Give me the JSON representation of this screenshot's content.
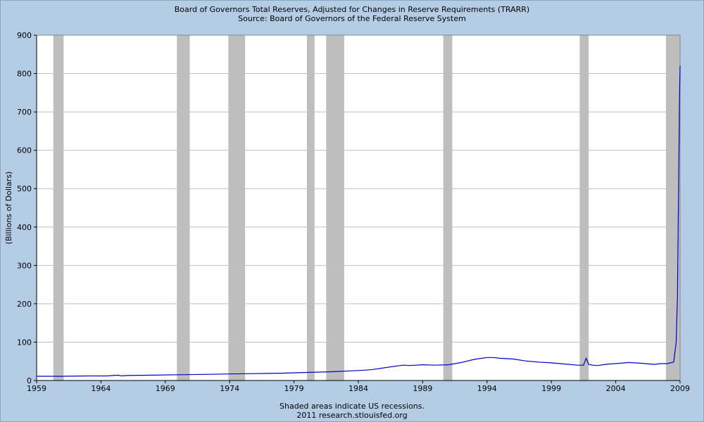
{
  "header": {
    "title": "Board of Governors Total Reserves, Adjusted for Changes in Reserve Requirements (TRARR)",
    "source": "Source: Board of Governors of the Federal Reserve System"
  },
  "footer": {
    "note": "Shaded areas indicate US recessions.",
    "credit": "2011 research.stlouisfed.org"
  },
  "colors": {
    "background": "#b4cce4",
    "plot": "#ffffff",
    "recession": "#bebebe",
    "line": "#0000cc",
    "grid": "#c0c0c0"
  },
  "chart_data": {
    "type": "line",
    "title": "Board of Governors Total Reserves, Adjusted for Changes in Reserve Requirements (TRARR)",
    "subtitle": "Source: Board of Governors of the Federal Reserve System",
    "xlabel": "",
    "ylabel": "(Billions of Dollars)",
    "xlim": [
      1959,
      2009
    ],
    "ylim": [
      0,
      900
    ],
    "xticks": [
      1959,
      1964,
      1969,
      1974,
      1979,
      1984,
      1989,
      1994,
      1999,
      2004,
      2009
    ],
    "yticks": [
      0,
      100,
      200,
      300,
      400,
      500,
      600,
      700,
      800,
      900
    ],
    "grid": true,
    "legend": "none",
    "recessions": [
      [
        1960.3,
        1961.1
      ],
      [
        1969.9,
        1970.9
      ],
      [
        1973.9,
        1975.2
      ],
      [
        1980.0,
        1980.6
      ],
      [
        1981.5,
        1982.9
      ],
      [
        1990.6,
        1991.3
      ],
      [
        2001.2,
        2001.9
      ],
      [
        2007.9,
        2009.0
      ]
    ],
    "series": [
      {
        "x": [
          1959.0,
          1961.0,
          1963.0,
          1964.5,
          1965.3,
          1965.6,
          1966.0,
          1968.0,
          1970.0,
          1972.0,
          1974.0,
          1976.0,
          1978.0,
          1980.0,
          1982.0,
          1984.0,
          1985.0,
          1986.0,
          1987.0,
          1987.5,
          1988.0,
          1989.0,
          1990.0,
          1991.0,
          1992.0,
          1993.0,
          1994.0,
          1994.5,
          1995.0,
          1996.0,
          1997.0,
          1998.0,
          1999.0,
          2000.0,
          2001.0,
          2001.5,
          2001.7,
          2001.9,
          2002.2,
          2002.6,
          2003.0,
          2003.5,
          2004.0,
          2005.0,
          2006.0,
          2007.0,
          2007.5,
          2008.0,
          2008.5,
          2008.7,
          2008.8,
          2008.9,
          2008.95,
          2009.0
        ],
        "y": [
          11,
          11,
          12,
          12,
          14,
          12,
          13,
          14,
          15,
          16,
          17,
          18,
          19,
          21,
          23,
          26,
          28,
          33,
          38,
          40,
          39,
          41,
          40,
          41,
          47,
          55,
          60,
          60,
          58,
          56,
          51,
          48,
          46,
          43,
          40,
          40,
          58,
          42,
          40,
          39,
          41,
          43,
          44,
          47,
          45,
          42,
          44,
          44,
          48,
          100,
          220,
          550,
          720,
          820
        ]
      }
    ]
  }
}
